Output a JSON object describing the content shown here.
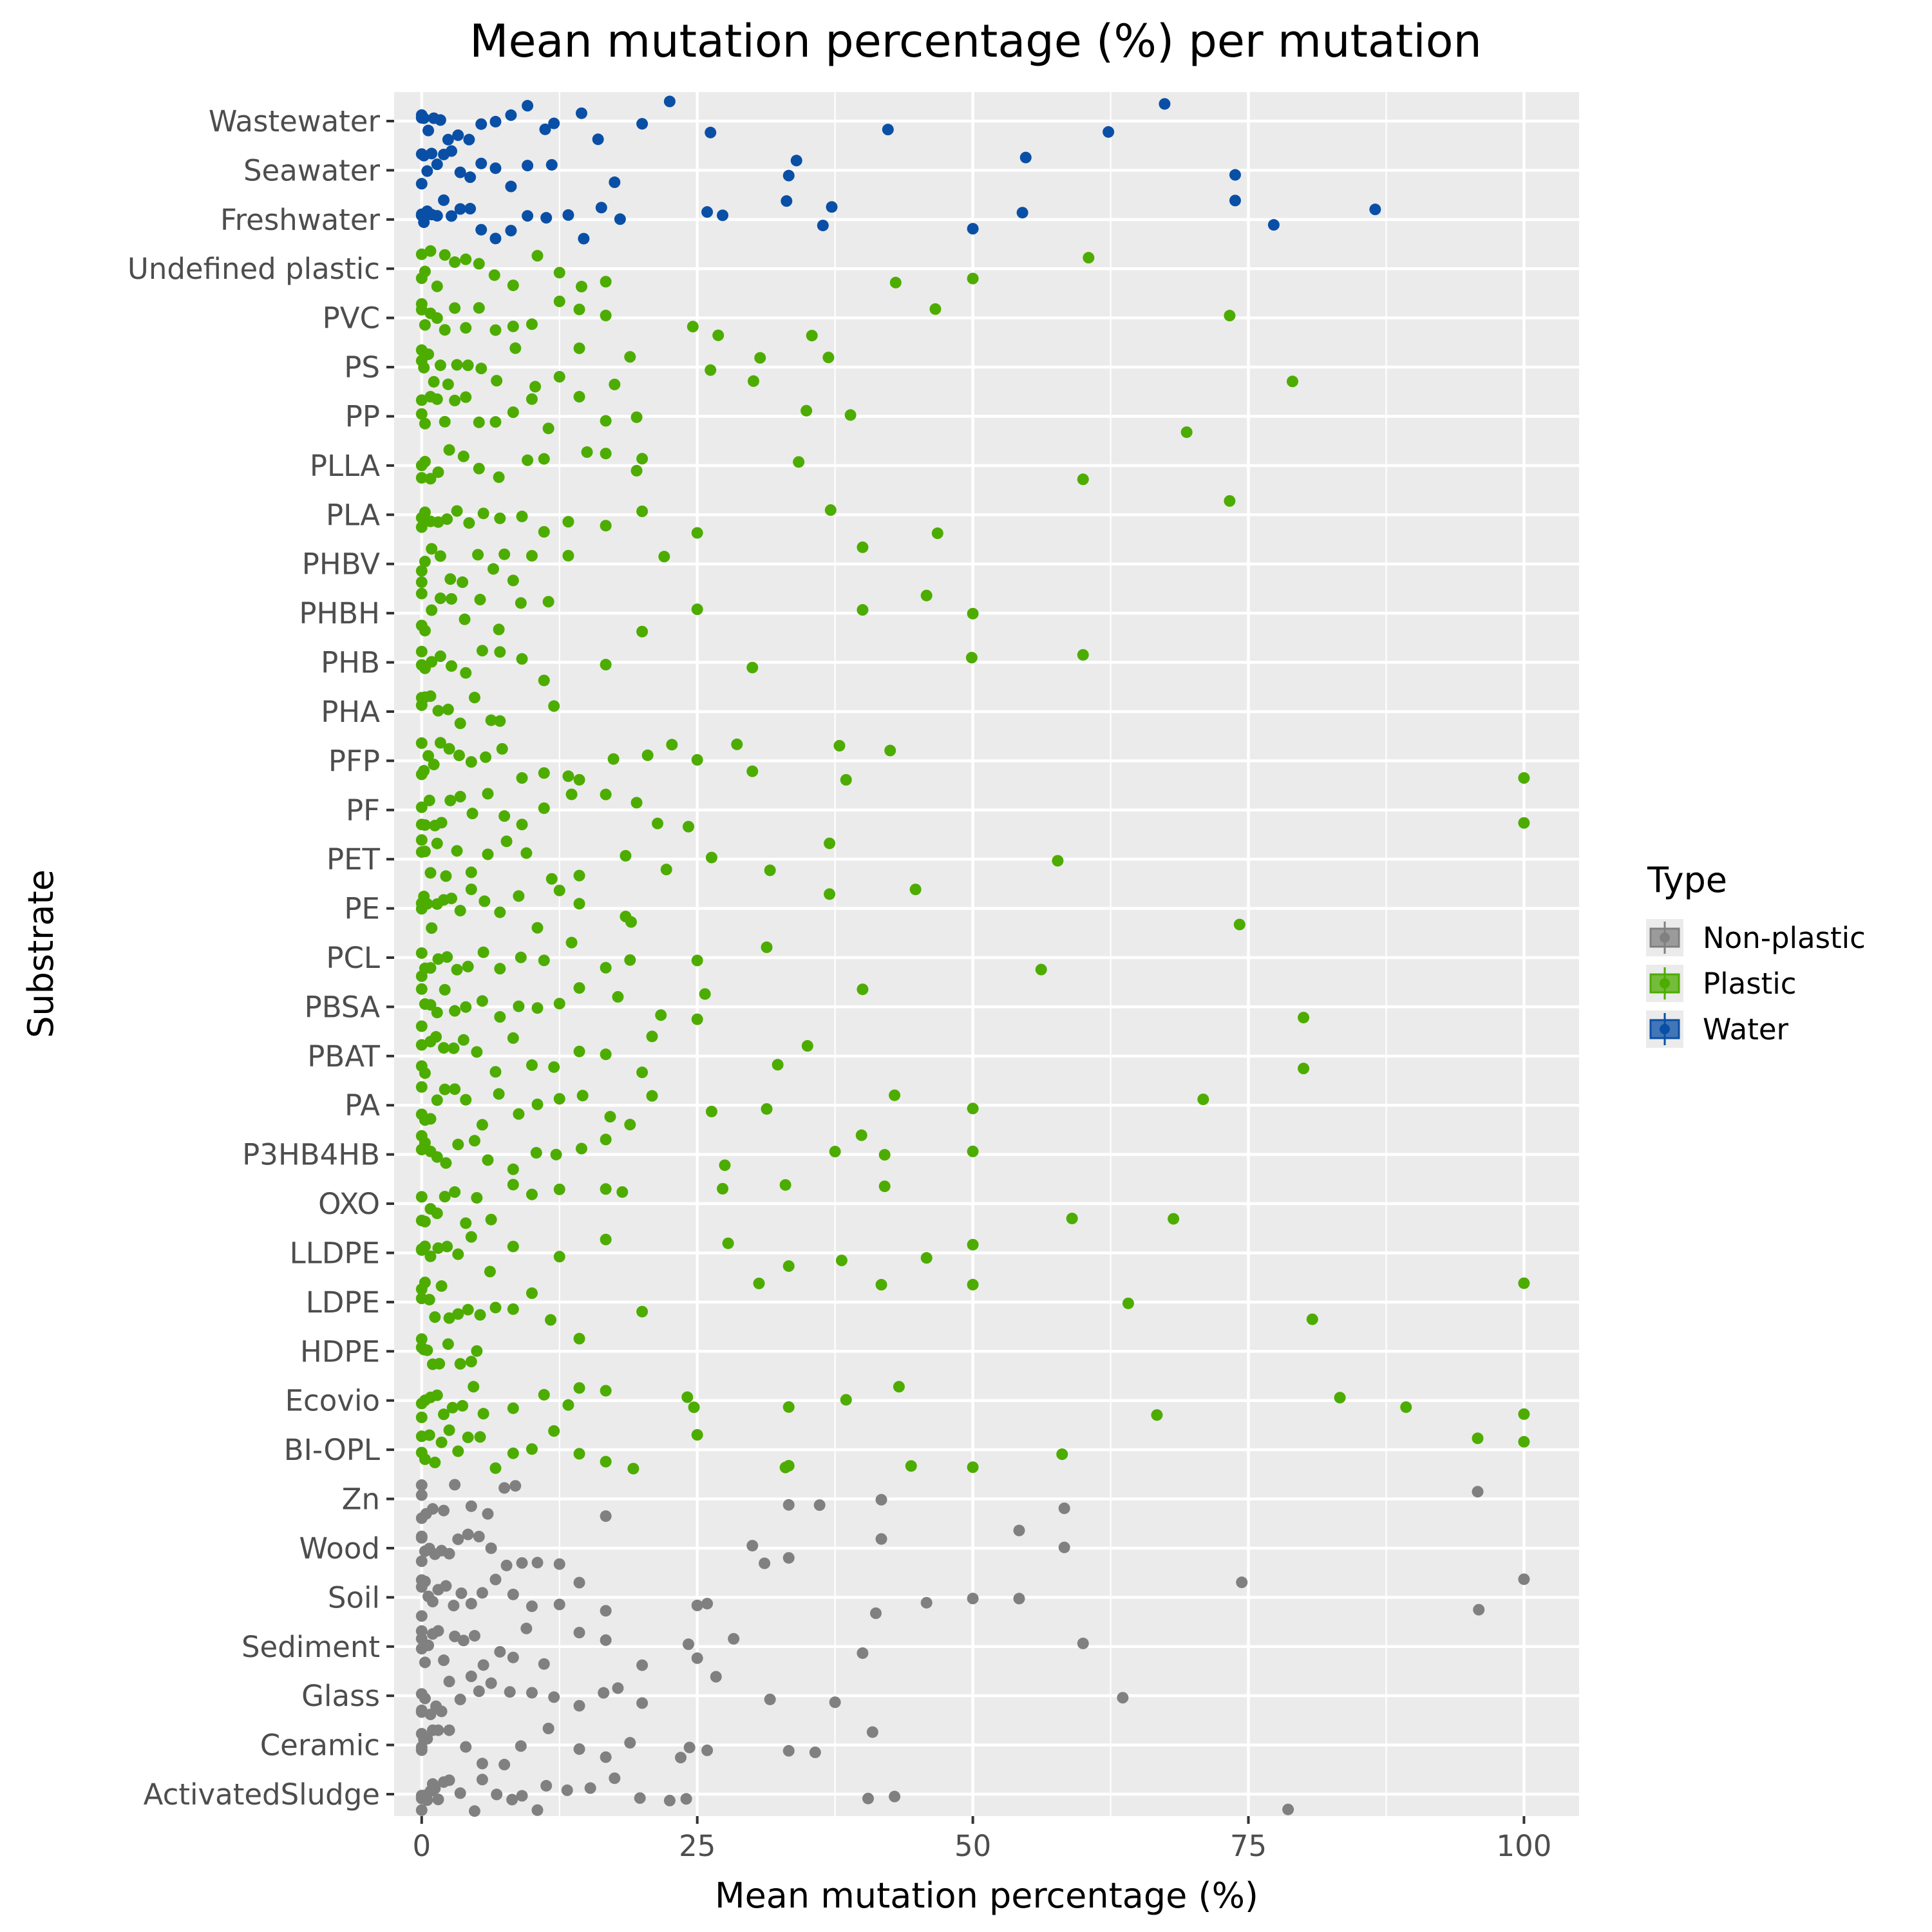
{
  "chart_data": {
    "type": "scatter",
    "title": "Mean mutation percentage (%) per mutation",
    "xlabel": "Mean mutation percentage (%)",
    "ylabel": "Substrate",
    "xlim": [
      -2.5,
      105
    ],
    "x_ticks": [
      "0",
      "25",
      "50",
      "75",
      "100"
    ],
    "categories": [
      "ActivatedSludge",
      "Ceramic",
      "Glass",
      "Sediment",
      "Soil",
      "Wood",
      "Zn",
      "BI-OPL",
      "Ecovio",
      "HDPE",
      "LDPE",
      "LLDPE",
      "OXO",
      "P3HB4HB",
      "PA",
      "PBAT",
      "PBSA",
      "PCL",
      "PE",
      "PET",
      "PF",
      "PFP",
      "PHA",
      "PHB",
      "PHBH",
      "PHBV",
      "PLA",
      "PLLA",
      "PP",
      "PS",
      "PVC",
      "Undefined plastic",
      "Freshwater",
      "Seawater",
      "Wastewater"
    ],
    "grid": true,
    "legend": {
      "title": "Type",
      "position": "right"
    },
    "series": [
      {
        "name": "Non-plastic",
        "color": "#808080",
        "points": {
          "ActivatedSludge": [
            0,
            0,
            0,
            0.3,
            0.5,
            0.8,
            1,
            1.2,
            1.5,
            2,
            2.5,
            3.5,
            4.8,
            5.5,
            6.8,
            8.2,
            9.1,
            10.5,
            11.3,
            13.2,
            15.3,
            17.5,
            19.8,
            22.5,
            24,
            40.5,
            42.9,
            78.6
          ],
          "Ceramic": [
            0,
            0,
            0,
            0.2,
            0.5,
            1,
            1.5,
            2.5,
            4,
            5.5,
            7.5,
            9,
            11.5,
            14.3,
            16.7,
            18.9,
            23.5,
            24.3,
            25.9,
            33.3,
            35.7,
            40.9
          ],
          "Glass": [
            0,
            0,
            0,
            0.3,
            0.8,
            1.3,
            1.8,
            2.5,
            3.5,
            4.5,
            5.2,
            6.3,
            8,
            10,
            12,
            14.3,
            16.5,
            17.8,
            20,
            26.7,
            31.6,
            37.5,
            63.6
          ],
          "Sediment": [
            0,
            0,
            0,
            0.3,
            0.6,
            1,
            1.5,
            2,
            3,
            3.8,
            4.8,
            5.6,
            7.1,
            8.3,
            9.5,
            11.1,
            14.3,
            16.7,
            20,
            24.2,
            25,
            28.3,
            40,
            60
          ],
          "Soil": [
            0,
            0,
            0,
            0.3,
            0.6,
            1,
            1.5,
            2.2,
            2.9,
            3.6,
            4.5,
            5.5,
            6.7,
            8.3,
            10,
            12.5,
            14.3,
            16.7,
            25,
            25.9,
            41.2,
            45.8,
            50,
            54.2,
            74.4,
            95.9,
            100
          ],
          "Wood": [
            0,
            0,
            0,
            0.3,
            0.7,
            1.2,
            1.8,
            2.5,
            3.3,
            4.2,
            5.2,
            6.3,
            7.7,
            9.1,
            10.5,
            12.5,
            30,
            31.1,
            33.3,
            41.7,
            54.2,
            58.3
          ],
          "Zn": [
            0,
            0,
            0,
            0.4,
            1,
            2,
            3,
            4.5,
            6,
            7.5,
            8.5,
            16.7,
            33.3,
            36.1,
            41.7,
            58.3,
            95.8
          ]
        }
      },
      {
        "name": "Plastic",
        "color": "#4dac00",
        "points": {
          "BI-OPL": [
            0,
            0,
            0.3,
            0.7,
            1.2,
            1.8,
            2.5,
            3.3,
            4.2,
            5.3,
            6.7,
            8.3,
            10,
            12,
            14.3,
            16.7,
            19.2,
            25,
            33,
            33.3,
            44.4,
            50,
            58.1,
            95.8,
            100
          ],
          "Ecovio": [
            0,
            0,
            0.3,
            0.8,
            1.4,
            2,
            2.8,
            3.7,
            4.7,
            5.6,
            8.3,
            11.1,
            13.3,
            14.3,
            16.7,
            24.1,
            24.7,
            33.3,
            38.5,
            43.3,
            66.7,
            83.3,
            89.3,
            100
          ],
          "HDPE": [
            0,
            0,
            0.2,
            0.5,
            1,
            1.6,
            2.4,
            3.5,
            4.5,
            5,
            14.3
          ],
          "LDPE": [
            0,
            0,
            0.3,
            0.7,
            1.2,
            1.8,
            2.5,
            3.3,
            4.2,
            5.3,
            6.7,
            8.3,
            10,
            11.7,
            20,
            30.6,
            41.7,
            50,
            64.1,
            80.8,
            100
          ],
          "LLDPE": [
            0,
            0,
            0.3,
            0.8,
            1.5,
            2.3,
            3.3,
            4.5,
            6.2,
            8.3,
            12.5,
            16.7,
            27.8,
            33.3,
            38.1,
            45.8,
            50
          ],
          "OXO": [
            0,
            0,
            0.3,
            0.8,
            1.4,
            2.1,
            3,
            4,
            5,
            6.3,
            8.3,
            10,
            12.5,
            16.7,
            18.2,
            27.3,
            33,
            42,
            59,
            68.2
          ],
          "P3HB4HB": [
            0,
            0,
            0.3,
            0.8,
            1.4,
            2.2,
            3.3,
            4.8,
            6,
            8.3,
            10.4,
            12.2,
            14.5,
            16.7,
            27.5,
            37.5,
            39.9,
            42,
            50
          ],
          "PA": [
            0,
            0,
            0.3,
            0.8,
            1.4,
            2.1,
            3,
            4,
            5.5,
            7,
            8.8,
            10.5,
            12.5,
            14.6,
            17.1,
            18.9,
            20.9,
            26.3,
            31.3,
            42.9,
            50,
            70.9
          ],
          "PBAT": [
            0,
            0,
            0.3,
            0.8,
            1.3,
            2,
            2.9,
            3.8,
            5,
            6.7,
            8.3,
            10,
            12,
            14.3,
            16.7,
            20,
            20.9,
            32.3,
            35,
            80
          ],
          "PBSA": [
            0,
            0,
            0.3,
            0.8,
            1.4,
            2.1,
            3,
            4,
            5.5,
            7.1,
            8.8,
            10.5,
            12.5,
            14.3,
            17.8,
            21.7,
            25,
            25.7,
            40,
            80
          ],
          "PCL": [
            0,
            0,
            0.3,
            0.8,
            1.5,
            2.3,
            3.2,
            4.2,
            5.6,
            7.1,
            9,
            11.1,
            13.6,
            16.7,
            18.9,
            25,
            31.3,
            56.2
          ],
          "PE": [
            0,
            0,
            0.2,
            0.5,
            0.9,
            1.4,
            2,
            2.7,
            3.5,
            4.5,
            5.7,
            7.1,
            8.8,
            10.5,
            12.5,
            14.3,
            18.5,
            19,
            37,
            44.8,
            74.2
          ],
          "PET": [
            0,
            0,
            0.3,
            0.8,
            1.4,
            2.2,
            3.2,
            4.5,
            6,
            7.7,
            9.5,
            11.8,
            14.3,
            18.5,
            22.2,
            26.3,
            31.6,
            37,
            57.7
          ],
          "PF": [
            0,
            0,
            0.3,
            0.7,
            1.2,
            1.8,
            2.6,
            3.5,
            4.6,
            6,
            7.5,
            9.1,
            11.1,
            13.6,
            16.7,
            19.5,
            21.4,
            24.2,
            100
          ],
          "PFP": [
            0,
            0,
            0.2,
            0.6,
            1.1,
            1.7,
            2.5,
            3.4,
            4.5,
            5.8,
            7.3,
            9.1,
            11.1,
            13.3,
            14.3,
            17.4,
            20.5,
            22.7,
            25,
            28.6,
            30,
            37.9,
            38.5,
            42.5,
            100
          ],
          "PHA": [
            0,
            0,
            0.3,
            0.8,
            1.5,
            2.4,
            3.5,
            4.8,
            6.3,
            7.1,
            12
          ],
          "PHB": [
            0,
            0,
            0.3,
            0.9,
            1.7,
            2.7,
            4,
            5.5,
            7.1,
            9.1,
            11.1,
            16.7,
            30,
            49.9,
            60
          ],
          "PHBH": [
            0,
            0,
            0.3,
            0.9,
            1.7,
            2.7,
            3.9,
            5.3,
            7,
            9,
            11.5,
            20,
            25,
            40,
            45.8,
            50
          ],
          "PHBV": [
            0,
            0,
            0.3,
            0.9,
            1.7,
            2.6,
            3.7,
            5.1,
            6.5,
            7.5,
            8.3,
            10,
            13.3,
            22,
            40
          ],
          "PLA": [
            0,
            0,
            0.3,
            0.8,
            1.5,
            2.3,
            3.2,
            4.3,
            5.6,
            7.1,
            9.1,
            11.1,
            13.3,
            16.7,
            20,
            25,
            37.1,
            46.8,
            73.3
          ],
          "PLLA": [
            0,
            0,
            0.3,
            0.8,
            1.5,
            2.5,
            3.8,
            5.2,
            7,
            9.6,
            11.1,
            15,
            16.7,
            19.5,
            20,
            34.2,
            60
          ],
          "PP": [
            0,
            0,
            0.3,
            0.8,
            1.4,
            2.1,
            3,
            4,
            5.2,
            6.7,
            8.3,
            10,
            11.5,
            14.3,
            16.7,
            19.5,
            34.9,
            38.9,
            69.4
          ],
          "PS": [
            0,
            0,
            0.2,
            0.6,
            1.1,
            1.7,
            2.4,
            3.2,
            4.2,
            5.4,
            6.8,
            8.5,
            10.3,
            12.5,
            14.3,
            17.5,
            18.9,
            26.2,
            30.1,
            30.7,
            36.9,
            79
          ],
          "PVC": [
            0,
            0,
            0.3,
            0.8,
            1.4,
            2.1,
            3,
            4,
            5.2,
            6.7,
            8.3,
            10,
            12.5,
            14.3,
            16.7,
            24.6,
            26.9,
            35.4,
            46.6,
            73.3
          ],
          "Undefined plastic": [
            0,
            0,
            0.3,
            0.8,
            1.4,
            2.1,
            3,
            4,
            5.2,
            6.6,
            8.3,
            10.5,
            12.5,
            14.5,
            16.7,
            43,
            50,
            60.5
          ]
        }
      },
      {
        "name": "Water",
        "color": "#0a4fa6",
        "points": {
          "Freshwater": [
            0,
            0,
            0.2,
            0.5,
            0.9,
            1.4,
            2,
            2.7,
            3.5,
            4.4,
            5.4,
            6.7,
            8.1,
            9.6,
            11.3,
            13.3,
            14.7,
            16.3,
            18,
            25.9,
            27.3,
            33.1,
            36.4,
            37.2,
            50,
            54.5,
            73.8,
            77.3,
            86.5
          ],
          "Seawater": [
            0,
            0,
            0.2,
            0.5,
            0.9,
            1.4,
            2,
            2.7,
            3.5,
            4.4,
            5.4,
            6.7,
            8.1,
            9.6,
            11.8,
            17.5,
            33.3,
            34,
            54.8,
            73.8
          ],
          "Wastewater": [
            0,
            0,
            0.2,
            0.6,
            1.1,
            1.7,
            2.4,
            3.3,
            4.3,
            5.4,
            6.7,
            8.1,
            9.6,
            11.2,
            12,
            14.5,
            16,
            20,
            22.5,
            26.2,
            42.3,
            62.3,
            67.4
          ]
        }
      }
    ]
  }
}
